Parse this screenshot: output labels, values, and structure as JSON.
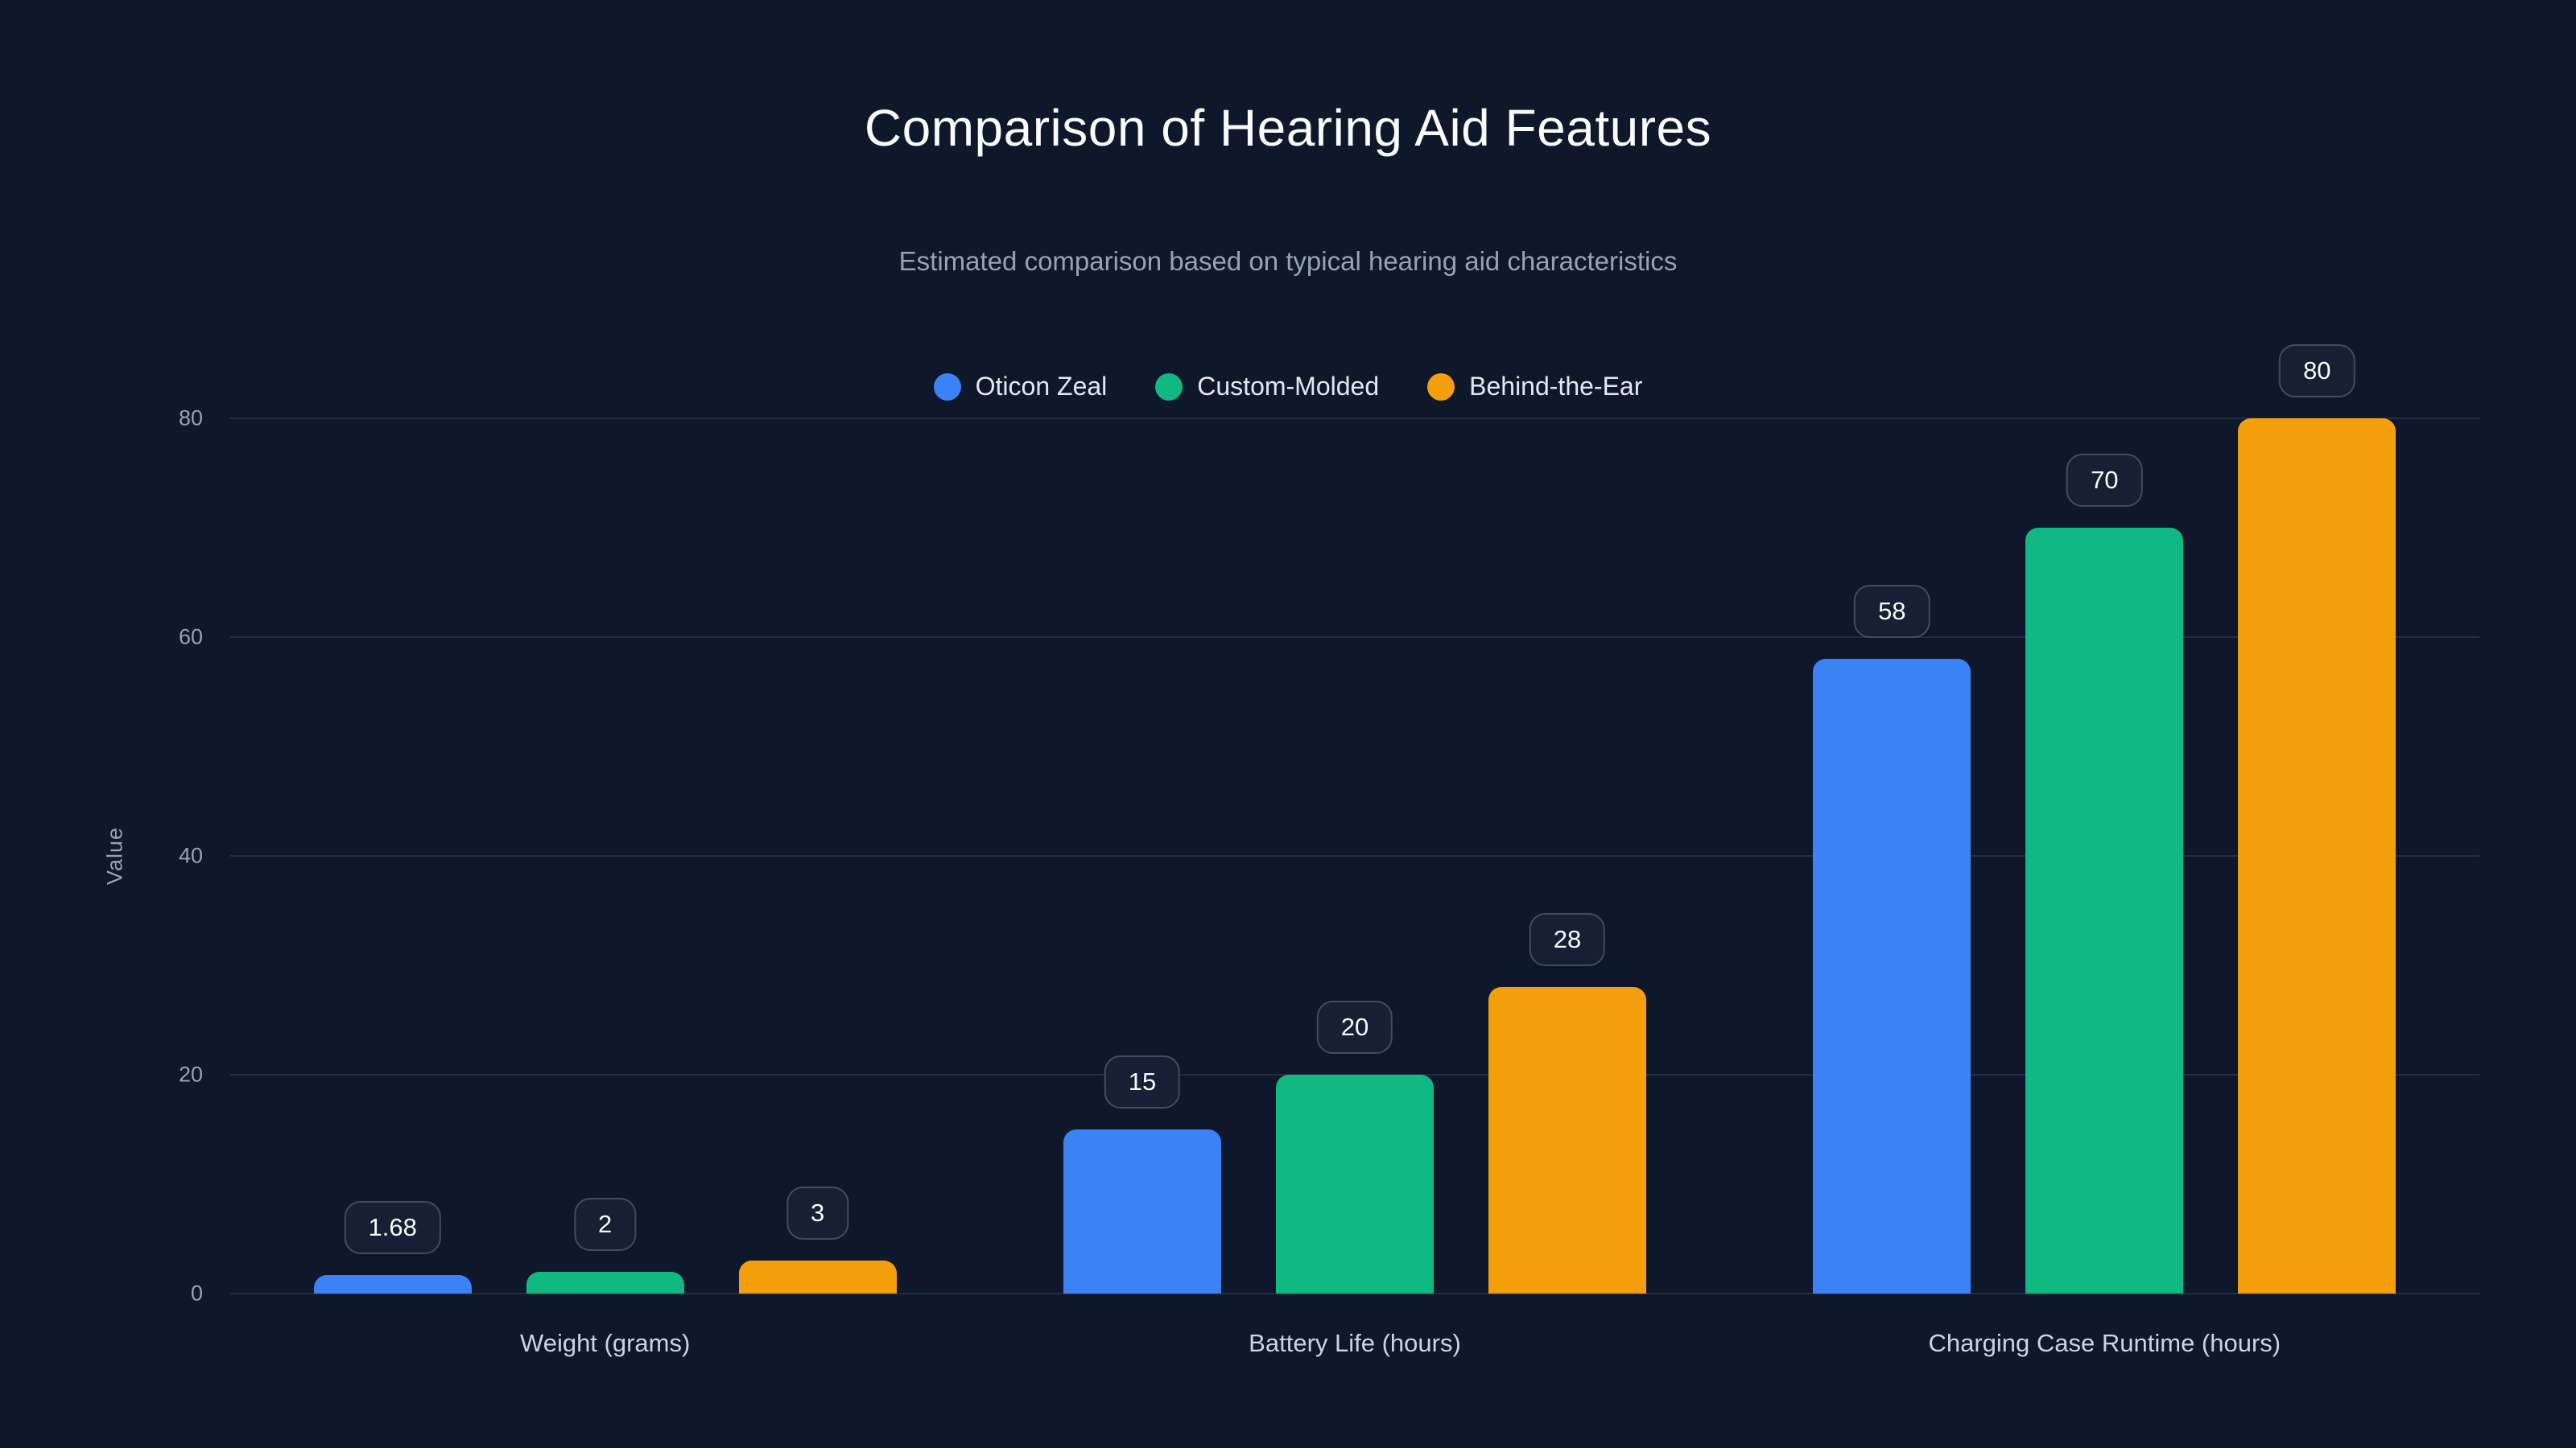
{
  "title": "Comparison of Hearing Aid Features",
  "subtitle": "Estimated comparison based on typical hearing aid characteristics",
  "colors": {
    "background": "#0f172a",
    "title_text": "#f8fafc",
    "muted_text": "#94a3b8",
    "series_blue": "#3b82f6",
    "series_green": "#10b981",
    "series_orange": "#f59e0b"
  },
  "chart_data": {
    "type": "bar",
    "categories": [
      "Weight (grams)",
      "Battery Life (hours)",
      "Charging Case Runtime (hours)"
    ],
    "series": [
      {
        "name": "Oticon Zeal",
        "color": "#3b82f6",
        "values": [
          1.68,
          15,
          58
        ]
      },
      {
        "name": "Custom-Molded",
        "color": "#10b981",
        "values": [
          2,
          20,
          70
        ]
      },
      {
        "name": "Behind-the-Ear",
        "color": "#f59e0b",
        "values": [
          3,
          28,
          80
        ]
      }
    ],
    "value_labels": [
      [
        "1.68",
        "15",
        "58"
      ],
      [
        "2",
        "20",
        "70"
      ],
      [
        "3",
        "28",
        "80"
      ]
    ],
    "xlabel": "",
    "ylabel": "Value",
    "ylim": [
      0,
      80
    ],
    "yticks": [
      0,
      20,
      40,
      60,
      80
    ],
    "grid": true,
    "legend_position": "top"
  }
}
